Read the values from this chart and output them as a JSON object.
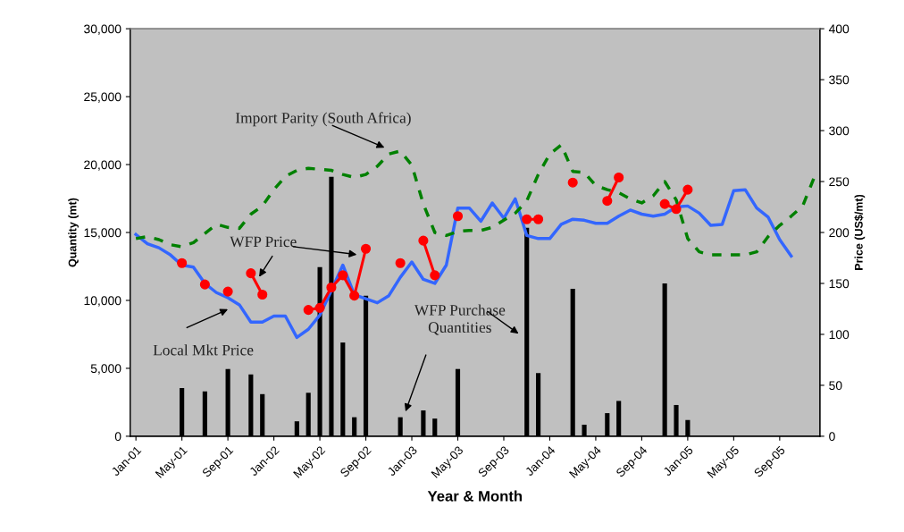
{
  "chart_data": {
    "type": "bar",
    "annotations": [
      "WFP Purchase\nQuantities",
      "Local Mkt Price",
      "Import Parity (South Africa)",
      "WFP Price"
    ],
    "xlabel": "Year & Month",
    "ylabel": "Quantity (mt)",
    "y2label": "Price (US$/mt)",
    "categories": [
      "Jan-01",
      null,
      null,
      null,
      "May-01",
      null,
      null,
      null,
      "Sep-01",
      null,
      null,
      null,
      "Jan-02",
      null,
      null,
      null,
      "May-02",
      null,
      null,
      null,
      "Sep-02",
      null,
      null,
      null,
      "Jan-03",
      null,
      null,
      null,
      "May-03",
      null,
      null,
      null,
      "Sep-03",
      null,
      null,
      null,
      "Jan-04",
      null,
      null,
      null,
      "May-04",
      null,
      null,
      null,
      "Sep-04",
      null,
      null,
      null,
      "Jan-05",
      null,
      null,
      null,
      "May-05",
      null,
      null,
      null,
      "Sep-05",
      null,
      null,
      null
    ],
    "ylim": [
      0,
      30000
    ],
    "yticks": [
      0,
      {
        "value": 5000,
        "label": "5,000"
      },
      {
        "value": 10000,
        "label": "10,000"
      },
      {
        "value": 15000,
        "label": "15,000"
      },
      {
        "value": 20000,
        "label": "20,000"
      },
      {
        "value": 25000,
        "label": "25,000"
      },
      {
        "value": 30000,
        "label": "30,000"
      }
    ],
    "y2lim": [
      0,
      400
    ],
    "y2ticks": [
      0,
      50,
      100,
      150,
      200,
      250,
      300,
      350,
      400
    ],
    "series": [
      {
        "color": "#000000",
        "values": [
          null,
          null,
          null,
          null,
          3550,
          null,
          3300,
          null,
          4950,
          null,
          4550,
          3100,
          null,
          null,
          1100,
          3200,
          12450,
          19100,
          6900,
          1400,
          10350,
          null,
          null,
          1400,
          null,
          1900,
          1300,
          null,
          4950,
          null,
          null,
          null,
          null,
          null,
          15350,
          4650,
          null,
          null,
          10850,
          850,
          null,
          1700,
          2600,
          null,
          null,
          null,
          11250,
          2300,
          1200,
          null,
          null,
          null,
          null,
          null,
          null,
          null,
          null,
          null,
          null,
          null
        ]
      },
      {
        "type": "line",
        "axis": "y2",
        "color": "#3366ff",
        "line_style": "solid",
        "marker": "none",
        "values": [
          198,
          189,
          185,
          178,
          168,
          166,
          150,
          141,
          136,
          129,
          112,
          112,
          118,
          118,
          97,
          105,
          119,
          143,
          168,
          139,
          135,
          131,
          138,
          156,
          171,
          154,
          150,
          168,
          224,
          224,
          211,
          229,
          214,
          233,
          197,
          194,
          194,
          208,
          213,
          212,
          209,
          209,
          216,
          222,
          218,
          216,
          218,
          225,
          226,
          219,
          207,
          208,
          241,
          242,
          224,
          215,
          193,
          177,
          null,
          null
        ]
      },
      {
        "type": "line",
        "axis": "y2",
        "color": "#008000",
        "line_style": "dashed",
        "marker": "none",
        "values": [
          194,
          196,
          193,
          188,
          186,
          190,
          199,
          208,
          205,
          204,
          218,
          226,
          242,
          255,
          261,
          263,
          262,
          261,
          257,
          254,
          257,
          265,
          277,
          280,
          266,
          228,
          200,
          197,
          201,
          202,
          202,
          205,
          212,
          219,
          231,
          257,
          277,
          286,
          260,
          259,
          246,
          242,
          239,
          233,
          229,
          236,
          250,
          232,
          194,
          181,
          178,
          178,
          178,
          178,
          181,
          196,
          207,
          216,
          226,
          254
        ]
      },
      {
        "type": "line",
        "axis": "y2",
        "color": "#ff0000",
        "line_style": "solid",
        "marker": "circle",
        "values": [
          null,
          null,
          null,
          null,
          170,
          null,
          149,
          null,
          142,
          null,
          160,
          139,
          null,
          null,
          null,
          124,
          126,
          146,
          158,
          138,
          184,
          null,
          null,
          170,
          null,
          192,
          158,
          null,
          216,
          null,
          null,
          null,
          null,
          null,
          213,
          213,
          null,
          null,
          249,
          null,
          null,
          231,
          254,
          null,
          null,
          null,
          228,
          223,
          242,
          null,
          null,
          null,
          null,
          null,
          null,
          null,
          null,
          null,
          null,
          null
        ]
      }
    ]
  }
}
